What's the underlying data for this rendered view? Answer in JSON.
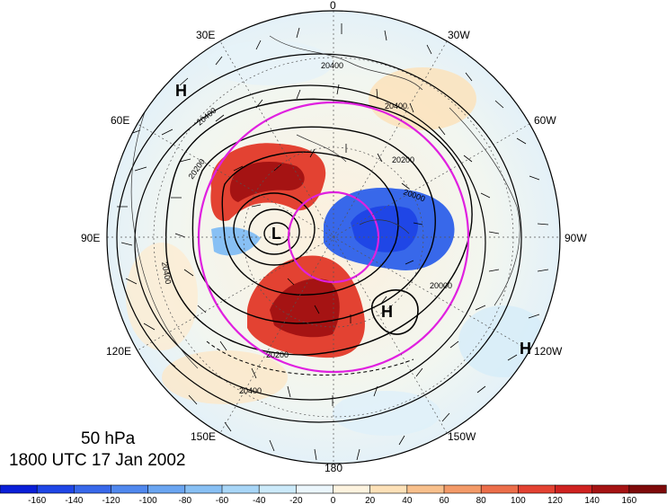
{
  "title": {
    "level": "50 hPa",
    "time": "1800 UTC 17 Jan 2002"
  },
  "map": {
    "longitude_labels": [
      "0",
      "30W",
      "60W",
      "90W",
      "120W",
      "150W",
      "180",
      "150E",
      "120E",
      "90E",
      "60E",
      "30E"
    ],
    "contour_labels": [
      "20400",
      "20400",
      "20400",
      "20200",
      "20200",
      "20000",
      "20000",
      "20400",
      "20200",
      "20400"
    ],
    "pressure_centers": [
      "H",
      "H",
      "H",
      "L"
    ]
  },
  "colorbar": {
    "ticks": [
      "-160",
      "-140",
      "-120",
      "-100",
      "-80",
      "-60",
      "-40",
      "-20",
      "0",
      "20",
      "40",
      "60",
      "80",
      "100",
      "120",
      "140",
      "160"
    ],
    "colors": [
      "#0a1fd8",
      "#1f46e6",
      "#3868ea",
      "#5088ee",
      "#6aa5f1",
      "#88c0f4",
      "#a8d6f7",
      "#cceafa",
      "#ebf6fc",
      "#fdf3df",
      "#fde1b8",
      "#f8c08c",
      "#f39a68",
      "#ec6e4a",
      "#e34232",
      "#cf2220",
      "#a51313",
      "#7e0a0a"
    ]
  }
}
